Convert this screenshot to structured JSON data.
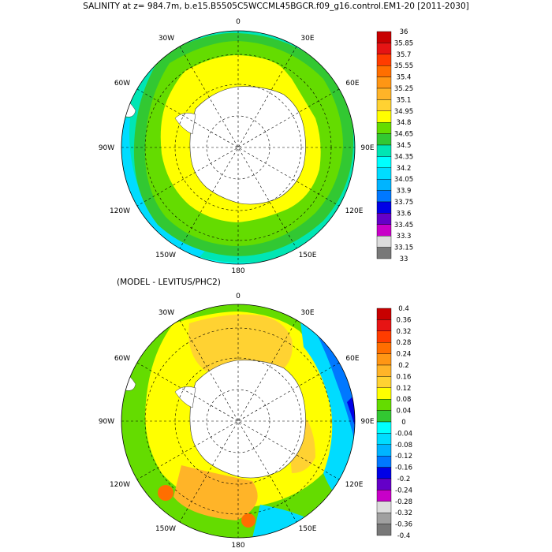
{
  "title": "SALINITY at z= 984.7m, b.e15.B5505C5WCCML45BGCR.f09_g16.control.EM1-20 [2011-2030]",
  "subtitle": "(MODEL - LEVITUS/PHC2)",
  "longitude_labels": {
    "top": "0",
    "upper_left": "30W",
    "upper_right": "30E",
    "left_upper": "60W",
    "right_upper": "60E",
    "left": "90W",
    "right": "90E",
    "left_lower": "120W",
    "right_lower": "120E",
    "lower_left": "150W",
    "lower_right": "150E",
    "bottom": "180"
  },
  "top_colorbar": {
    "labels": [
      "36",
      "35.85",
      "35.7",
      "35.55",
      "35.4",
      "35.25",
      "35.1",
      "34.95",
      "34.8",
      "34.65",
      "34.5",
      "34.35",
      "34.2",
      "34.05",
      "33.9",
      "33.75",
      "33.6",
      "33.45",
      "33.3",
      "33.15",
      "33"
    ],
    "colors": [
      "#c80000",
      "#e61414",
      "#ff3c00",
      "#ff6e00",
      "#ff9614",
      "#ffb428",
      "#ffd232",
      "#ffff00",
      "#64dc00",
      "#32c832",
      "#00e6b4",
      "#00ffff",
      "#00dcff",
      "#00b4ff",
      "#0078ff",
      "#0000e6",
      "#6400c8",
      "#c800c8",
      "#dcdcdc",
      "#787878"
    ]
  },
  "bottom_colorbar": {
    "labels": [
      "0.4",
      "0.36",
      "0.32",
      "0.28",
      "0.24",
      "0.2",
      "0.16",
      "0.12",
      "0.08",
      "0.04",
      "0",
      "-0.04",
      "-0.08",
      "-0.12",
      "-0.16",
      "-0.2",
      "-0.24",
      "-0.28",
      "-0.32",
      "-0.36",
      "-0.4"
    ],
    "colors": [
      "#c80000",
      "#e61414",
      "#ff3c00",
      "#ff6e00",
      "#ff9614",
      "#ffb428",
      "#ffd232",
      "#ffff00",
      "#64dc00",
      "#32c832",
      "#00ffff",
      "#00dcff",
      "#00b4ff",
      "#0078ff",
      "#0000e6",
      "#6400c8",
      "#c800c8",
      "#dcdcdc",
      "#a0a0a0",
      "#787878"
    ]
  }
}
